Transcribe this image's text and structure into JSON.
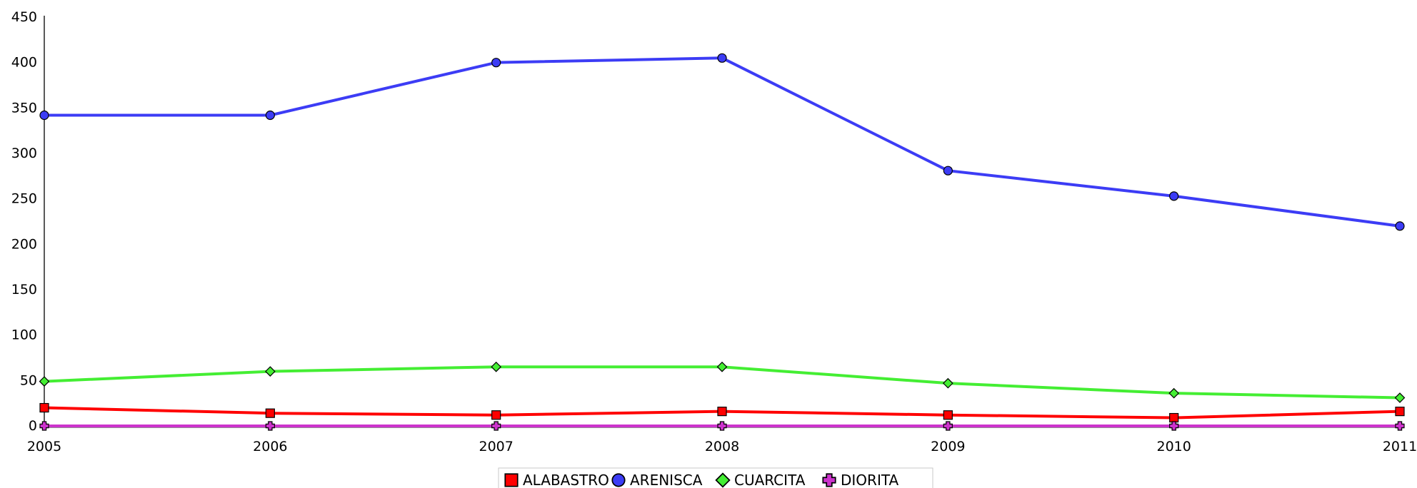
{
  "chart_data": {
    "type": "line",
    "title": "",
    "xlabel": "",
    "ylabel": "",
    "x": [
      "2005",
      "2006",
      "2007",
      "2008",
      "2009",
      "2010",
      "2011"
    ],
    "ylim": [
      0,
      450
    ],
    "yticks": [
      "0",
      "50",
      "100",
      "150",
      "200",
      "250",
      "300",
      "350",
      "400",
      "450"
    ],
    "grid": false,
    "legend_position": "bottom-center",
    "series": [
      {
        "name": "ALABASTRO",
        "color": "#ff0000",
        "marker": "square",
        "values": [
          20,
          14,
          12,
          16,
          12,
          9,
          16
        ]
      },
      {
        "name": "ARENISCA",
        "color": "#3c3cf5",
        "marker": "circle",
        "values": [
          342,
          342,
          400,
          405,
          281,
          253,
          220
        ]
      },
      {
        "name": "CUARCITA",
        "color": "#44ee33",
        "marker": "diamond",
        "values": [
          49,
          60,
          65,
          65,
          47,
          36,
          31
        ]
      },
      {
        "name": "DIORITA",
        "color": "#cc33cc",
        "marker": "cross",
        "values": [
          0,
          0,
          0,
          0,
          0,
          0,
          0
        ]
      }
    ]
  }
}
